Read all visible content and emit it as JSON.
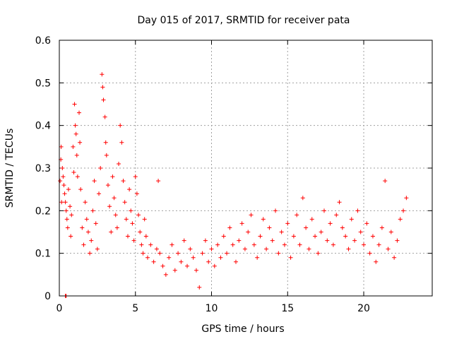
{
  "chart_data": {
    "type": "scatter",
    "title": "Day 015 of 2017, SRMTID for receiver pata",
    "xlabel": "GPS time / hours",
    "ylabel": "SRMTID / TECUs",
    "xlim": [
      0,
      24.5
    ],
    "ylim": [
      0,
      0.6
    ],
    "xticks": [
      0,
      5,
      10,
      15,
      20
    ],
    "xtick_labels": [
      "0",
      "5",
      "10",
      "15",
      "20"
    ],
    "yticks": [
      0,
      0.1,
      0.2,
      0.3,
      0.4,
      0.5,
      0.6
    ],
    "ytick_labels": [
      "0",
      "0.1",
      "0.2",
      "0.3",
      "0.4",
      "0.5",
      "0.6"
    ],
    "grid": true,
    "marker": "+",
    "color": "#ff0000",
    "series": [
      {
        "name": "SRMTID",
        "points": [
          [
            0.05,
            0.27
          ],
          [
            0.1,
            0.32
          ],
          [
            0.12,
            0.35
          ],
          [
            0.15,
            0.22
          ],
          [
            0.2,
            0.3
          ],
          [
            0.25,
            0.28
          ],
          [
            0.3,
            0.26
          ],
          [
            0.35,
            0.24
          ],
          [
            0.4,
            0.22
          ],
          [
            0.45,
            0.2
          ],
          [
            0.4,
            0.0
          ],
          [
            0.45,
            0.0
          ],
          [
            0.5,
            0.18
          ],
          [
            0.55,
            0.16
          ],
          [
            0.6,
            0.25
          ],
          [
            0.7,
            0.21
          ],
          [
            0.75,
            0.14
          ],
          [
            0.8,
            0.19
          ],
          [
            0.9,
            0.35
          ],
          [
            0.95,
            0.29
          ],
          [
            1.0,
            0.45
          ],
          [
            1.05,
            0.4
          ],
          [
            1.1,
            0.38
          ],
          [
            1.15,
            0.33
          ],
          [
            1.2,
            0.28
          ],
          [
            1.3,
            0.43
          ],
          [
            1.35,
            0.36
          ],
          [
            1.4,
            0.25
          ],
          [
            1.5,
            0.16
          ],
          [
            1.6,
            0.12
          ],
          [
            1.7,
            0.22
          ],
          [
            1.8,
            0.18
          ],
          [
            1.9,
            0.15
          ],
          [
            2.0,
            0.1
          ],
          [
            2.1,
            0.13
          ],
          [
            2.2,
            0.2
          ],
          [
            2.3,
            0.27
          ],
          [
            2.4,
            0.17
          ],
          [
            2.5,
            0.11
          ],
          [
            2.6,
            0.24
          ],
          [
            2.7,
            0.3
          ],
          [
            2.8,
            0.52
          ],
          [
            2.85,
            0.49
          ],
          [
            2.9,
            0.46
          ],
          [
            3.0,
            0.42
          ],
          [
            3.05,
            0.36
          ],
          [
            3.1,
            0.33
          ],
          [
            3.2,
            0.26
          ],
          [
            3.3,
            0.21
          ],
          [
            3.4,
            0.15
          ],
          [
            3.5,
            0.28
          ],
          [
            3.6,
            0.23
          ],
          [
            3.7,
            0.19
          ],
          [
            3.8,
            0.16
          ],
          [
            3.9,
            0.31
          ],
          [
            4.0,
            0.4
          ],
          [
            4.1,
            0.36
          ],
          [
            4.2,
            0.27
          ],
          [
            4.3,
            0.22
          ],
          [
            4.4,
            0.18
          ],
          [
            4.5,
            0.14
          ],
          [
            4.6,
            0.25
          ],
          [
            4.7,
            0.2
          ],
          [
            4.8,
            0.17
          ],
          [
            4.9,
            0.13
          ],
          [
            5.0,
            0.28
          ],
          [
            5.1,
            0.24
          ],
          [
            5.2,
            0.19
          ],
          [
            5.3,
            0.15
          ],
          [
            5.4,
            0.12
          ],
          [
            5.5,
            0.1
          ],
          [
            5.6,
            0.18
          ],
          [
            5.7,
            0.14
          ],
          [
            5.8,
            0.09
          ],
          [
            6.0,
            0.12
          ],
          [
            6.2,
            0.08
          ],
          [
            6.4,
            0.11
          ],
          [
            6.5,
            0.27
          ],
          [
            6.6,
            0.1
          ],
          [
            6.8,
            0.07
          ],
          [
            7.0,
            0.05
          ],
          [
            7.2,
            0.09
          ],
          [
            7.4,
            0.12
          ],
          [
            7.6,
            0.06
          ],
          [
            7.8,
            0.1
          ],
          [
            8.0,
            0.08
          ],
          [
            8.2,
            0.13
          ],
          [
            8.4,
            0.07
          ],
          [
            8.6,
            0.11
          ],
          [
            8.8,
            0.09
          ],
          [
            9.0,
            0.06
          ],
          [
            9.2,
            0.02
          ],
          [
            9.4,
            0.1
          ],
          [
            9.6,
            0.13
          ],
          [
            9.8,
            0.08
          ],
          [
            10.0,
            0.11
          ],
          [
            10.2,
            0.07
          ],
          [
            10.4,
            0.12
          ],
          [
            10.6,
            0.09
          ],
          [
            10.8,
            0.14
          ],
          [
            11.0,
            0.1
          ],
          [
            11.2,
            0.16
          ],
          [
            11.4,
            0.12
          ],
          [
            11.6,
            0.08
          ],
          [
            11.8,
            0.13
          ],
          [
            12.0,
            0.17
          ],
          [
            12.2,
            0.11
          ],
          [
            12.4,
            0.15
          ],
          [
            12.6,
            0.19
          ],
          [
            12.8,
            0.12
          ],
          [
            13.0,
            0.09
          ],
          [
            13.2,
            0.14
          ],
          [
            13.4,
            0.18
          ],
          [
            13.6,
            0.11
          ],
          [
            13.8,
            0.16
          ],
          [
            14.0,
            0.13
          ],
          [
            14.2,
            0.2
          ],
          [
            14.4,
            0.1
          ],
          [
            14.6,
            0.15
          ],
          [
            14.8,
            0.12
          ],
          [
            15.0,
            0.17
          ],
          [
            15.2,
            0.09
          ],
          [
            15.4,
            0.14
          ],
          [
            15.6,
            0.19
          ],
          [
            15.8,
            0.12
          ],
          [
            16.0,
            0.23
          ],
          [
            16.2,
            0.16
          ],
          [
            16.4,
            0.11
          ],
          [
            16.6,
            0.18
          ],
          [
            16.8,
            0.14
          ],
          [
            17.0,
            0.1
          ],
          [
            17.2,
            0.15
          ],
          [
            17.4,
            0.2
          ],
          [
            17.6,
            0.13
          ],
          [
            17.8,
            0.17
          ],
          [
            18.0,
            0.12
          ],
          [
            18.2,
            0.19
          ],
          [
            18.4,
            0.22
          ],
          [
            18.6,
            0.16
          ],
          [
            18.8,
            0.14
          ],
          [
            19.0,
            0.11
          ],
          [
            19.2,
            0.18
          ],
          [
            19.4,
            0.13
          ],
          [
            19.6,
            0.2
          ],
          [
            19.8,
            0.15
          ],
          [
            20.0,
            0.12
          ],
          [
            20.2,
            0.17
          ],
          [
            20.4,
            0.1
          ],
          [
            20.6,
            0.14
          ],
          [
            20.8,
            0.08
          ],
          [
            21.0,
            0.12
          ],
          [
            21.2,
            0.16
          ],
          [
            21.4,
            0.27
          ],
          [
            21.6,
            0.11
          ],
          [
            21.8,
            0.15
          ],
          [
            22.0,
            0.09
          ],
          [
            22.2,
            0.13
          ],
          [
            22.4,
            0.18
          ],
          [
            22.6,
            0.2
          ],
          [
            22.8,
            0.23
          ]
        ]
      }
    ]
  }
}
